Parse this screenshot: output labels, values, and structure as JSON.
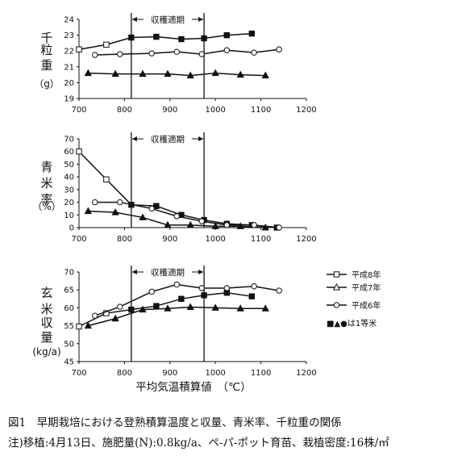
{
  "chart_data": [
    {
      "type": "line",
      "ylabel": "千粒重（g）",
      "xlim": [
        700,
        1200
      ],
      "ylim": [
        19,
        24
      ],
      "xticks": [
        700,
        800,
        900,
        1000,
        1100,
        1200
      ],
      "yticks": [
        19,
        20,
        21,
        22,
        23,
        24
      ],
      "band": {
        "label": "収穫適期",
        "x": [
          815,
          975
        ]
      },
      "grid": false,
      "series": [
        {
          "name": "平成8年",
          "marker": "square",
          "x": [
            700,
            760,
            815,
            870,
            925,
            975,
            1025,
            1080
          ],
          "y": [
            22.1,
            22.4,
            22.85,
            22.9,
            22.75,
            22.8,
            23.0,
            23.1
          ],
          "first_grade": [
            false,
            false,
            true,
            true,
            true,
            true,
            true,
            true
          ]
        },
        {
          "name": "平成7年",
          "marker": "triangle",
          "x": [
            720,
            780,
            840,
            895,
            945,
            1000,
            1055,
            1110
          ],
          "y": [
            20.6,
            20.55,
            20.55,
            20.55,
            20.45,
            20.6,
            20.5,
            20.45
          ],
          "first_grade": [
            true,
            true,
            true,
            true,
            true,
            true,
            true,
            true
          ]
        },
        {
          "name": "平成6年",
          "marker": "circle",
          "x": [
            735,
            790,
            860,
            915,
            970,
            1025,
            1085,
            1140
          ],
          "y": [
            21.75,
            21.8,
            21.85,
            21.95,
            21.8,
            22.05,
            21.9,
            22.1
          ],
          "first_grade": [
            false,
            false,
            false,
            false,
            false,
            false,
            false,
            false
          ]
        }
      ]
    },
    {
      "type": "line",
      "ylabel": "青米率（%）",
      "xlim": [
        700,
        1200
      ],
      "ylim": [
        0,
        70
      ],
      "xticks": [
        700,
        800,
        900,
        1000,
        1100,
        1200
      ],
      "yticks": [
        0,
        10,
        20,
        30,
        40,
        50,
        60,
        70
      ],
      "band": {
        "label": "収穫適期",
        "x": [
          815,
          975
        ]
      },
      "grid": false,
      "series": [
        {
          "name": "平成8年",
          "marker": "square",
          "x": [
            700,
            760,
            815,
            870,
            925,
            975,
            1025,
            1080,
            1135
          ],
          "y": [
            60,
            38,
            18,
            17,
            10,
            6,
            3,
            2,
            0
          ],
          "first_grade": [
            false,
            false,
            true,
            true,
            true,
            true,
            true,
            true,
            true
          ]
        },
        {
          "name": "平成7年",
          "marker": "triangle",
          "x": [
            720,
            780,
            840,
            895,
            945,
            1000,
            1055,
            1110
          ],
          "y": [
            13,
            12,
            8,
            2,
            2,
            1,
            1,
            0
          ],
          "first_grade": [
            true,
            true,
            true,
            true,
            true,
            true,
            true,
            true
          ]
        },
        {
          "name": "平成6年",
          "marker": "circle",
          "x": [
            735,
            790,
            860,
            915,
            970,
            1025,
            1085,
            1140
          ],
          "y": [
            20,
            20,
            15,
            9,
            5,
            2,
            2,
            0
          ],
          "first_grade": [
            false,
            false,
            false,
            false,
            false,
            false,
            false,
            false
          ]
        }
      ]
    },
    {
      "type": "line",
      "ylabel": "玄米収量（kg/a）",
      "xlabel": "平均気温積算値　（℃）",
      "xlim": [
        700,
        1200
      ],
      "ylim": [
        45,
        70
      ],
      "xticks": [
        700,
        800,
        900,
        1000,
        1100,
        1200
      ],
      "yticks": [
        45,
        50,
        55,
        60,
        65,
        70
      ],
      "band": {
        "label": "収穫適期",
        "x": [
          815,
          975
        ]
      },
      "grid": false,
      "legend_position": "right",
      "legend_note": "■▲●は1等米",
      "series": [
        {
          "name": "平成8年",
          "marker": "square",
          "x": [
            700,
            760,
            815,
            870,
            925,
            975,
            1025,
            1080
          ],
          "y": [
            54.8,
            58.5,
            59.5,
            60.5,
            62.5,
            63.5,
            64.2,
            63.2
          ],
          "first_grade": [
            false,
            false,
            true,
            true,
            true,
            true,
            true,
            true
          ]
        },
        {
          "name": "平成7年",
          "marker": "triangle",
          "x": [
            720,
            780,
            840,
            895,
            945,
            1000,
            1055,
            1110
          ],
          "y": [
            55,
            57,
            59.5,
            59.8,
            60.2,
            60.0,
            59.8,
            59.8
          ],
          "first_grade": [
            true,
            true,
            true,
            true,
            true,
            true,
            true,
            true
          ]
        },
        {
          "name": "平成6年",
          "marker": "circle",
          "x": [
            735,
            790,
            860,
            915,
            970,
            1025,
            1085,
            1140
          ],
          "y": [
            57.8,
            60.3,
            64.5,
            66.5,
            65.5,
            65.5,
            66.0,
            64.8
          ],
          "first_grade": [
            false,
            false,
            false,
            false,
            false,
            false,
            false,
            false
          ]
        }
      ]
    }
  ],
  "ylabel_chars": [
    [
      "千",
      "粒",
      "重",
      "（g）"
    ],
    [
      "青",
      "米",
      "率",
      "（%）"
    ],
    [
      "玄",
      "米",
      "収",
      "量",
      "(kg/a)"
    ]
  ],
  "caption": {
    "line1": "図1　早期栽培における登熟積算温度と収量、青米率、千粒重の関係",
    "line2": "注)移植:4月13日、施肥量(N):0.8kg/a、ペ-パ-ポット育苗、栽植密度:16株/㎡"
  }
}
